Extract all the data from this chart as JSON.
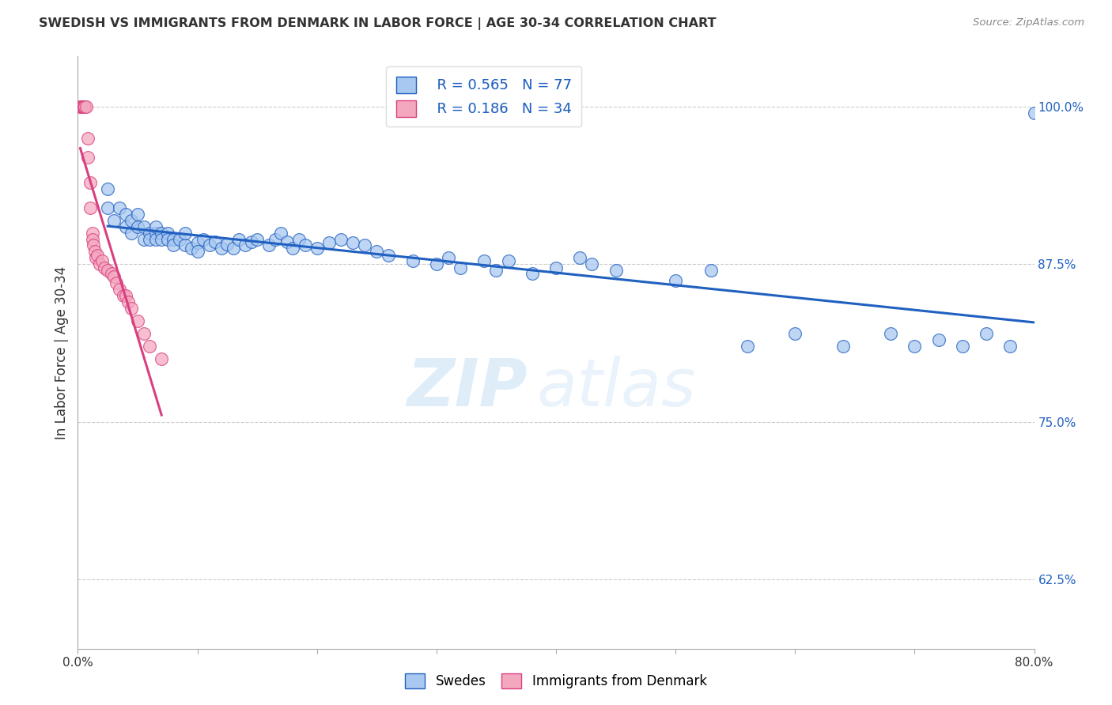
{
  "title": "SWEDISH VS IMMIGRANTS FROM DENMARK IN LABOR FORCE | AGE 30-34 CORRELATION CHART",
  "source": "Source: ZipAtlas.com",
  "ylabel": "In Labor Force | Age 30-34",
  "xlim": [
    0.0,
    0.8
  ],
  "ylim": [
    0.57,
    1.04
  ],
  "yticks_right": [
    0.625,
    0.75,
    0.875,
    1.0
  ],
  "ytick_labels_right": [
    "62.5%",
    "75.0%",
    "87.5%",
    "100.0%"
  ],
  "legend_blue_r": "R = 0.565",
  "legend_blue_n": "N = 77",
  "legend_pink_r": "R = 0.186",
  "legend_pink_n": "N = 34",
  "blue_color": "#A8C8F0",
  "pink_color": "#F4A8C0",
  "blue_line_color": "#2060C0",
  "pink_line_color": "#D84080",
  "watermark_zip": "ZIP",
  "watermark_atlas": "atlas",
  "swedes_label": "Swedes",
  "immigrants_label": "Immigrants from Denmark",
  "blue_scatter_x": [
    0.025,
    0.025,
    0.03,
    0.035,
    0.04,
    0.04,
    0.045,
    0.045,
    0.05,
    0.05,
    0.055,
    0.055,
    0.06,
    0.06,
    0.065,
    0.065,
    0.065,
    0.07,
    0.07,
    0.075,
    0.075,
    0.08,
    0.08,
    0.085,
    0.09,
    0.09,
    0.095,
    0.1,
    0.1,
    0.105,
    0.11,
    0.115,
    0.12,
    0.125,
    0.13,
    0.135,
    0.14,
    0.145,
    0.15,
    0.16,
    0.165,
    0.17,
    0.175,
    0.18,
    0.185,
    0.19,
    0.2,
    0.21,
    0.22,
    0.23,
    0.24,
    0.25,
    0.26,
    0.28,
    0.3,
    0.31,
    0.32,
    0.34,
    0.35,
    0.36,
    0.38,
    0.4,
    0.42,
    0.43,
    0.45,
    0.5,
    0.53,
    0.56,
    0.6,
    0.64,
    0.68,
    0.7,
    0.72,
    0.74,
    0.76,
    0.78,
    0.8
  ],
  "blue_scatter_y": [
    0.935,
    0.92,
    0.91,
    0.92,
    0.915,
    0.905,
    0.91,
    0.9,
    0.915,
    0.905,
    0.905,
    0.895,
    0.9,
    0.895,
    0.9,
    0.895,
    0.905,
    0.9,
    0.895,
    0.9,
    0.895,
    0.895,
    0.89,
    0.895,
    0.89,
    0.9,
    0.888,
    0.892,
    0.885,
    0.895,
    0.89,
    0.893,
    0.888,
    0.891,
    0.888,
    0.895,
    0.89,
    0.893,
    0.895,
    0.89,
    0.895,
    0.9,
    0.893,
    0.888,
    0.895,
    0.89,
    0.888,
    0.892,
    0.895,
    0.892,
    0.89,
    0.885,
    0.882,
    0.878,
    0.875,
    0.88,
    0.872,
    0.878,
    0.87,
    0.878,
    0.868,
    0.872,
    0.88,
    0.875,
    0.87,
    0.862,
    0.87,
    0.81,
    0.82,
    0.81,
    0.82,
    0.81,
    0.815,
    0.81,
    0.82,
    0.81,
    0.995
  ],
  "pink_scatter_x": [
    0.002,
    0.003,
    0.004,
    0.004,
    0.005,
    0.005,
    0.006,
    0.007,
    0.008,
    0.008,
    0.01,
    0.01,
    0.012,
    0.012,
    0.013,
    0.014,
    0.015,
    0.016,
    0.018,
    0.02,
    0.022,
    0.025,
    0.028,
    0.03,
    0.032,
    0.035,
    0.038,
    0.04,
    0.042,
    0.045,
    0.05,
    0.055,
    0.06,
    0.07
  ],
  "pink_scatter_y": [
    1.0,
    1.0,
    1.0,
    1.0,
    1.0,
    1.0,
    1.0,
    1.0,
    0.975,
    0.96,
    0.94,
    0.92,
    0.9,
    0.895,
    0.89,
    0.885,
    0.88,
    0.882,
    0.875,
    0.878,
    0.872,
    0.87,
    0.868,
    0.865,
    0.86,
    0.855,
    0.85,
    0.85,
    0.845,
    0.84,
    0.83,
    0.82,
    0.81,
    0.8
  ]
}
